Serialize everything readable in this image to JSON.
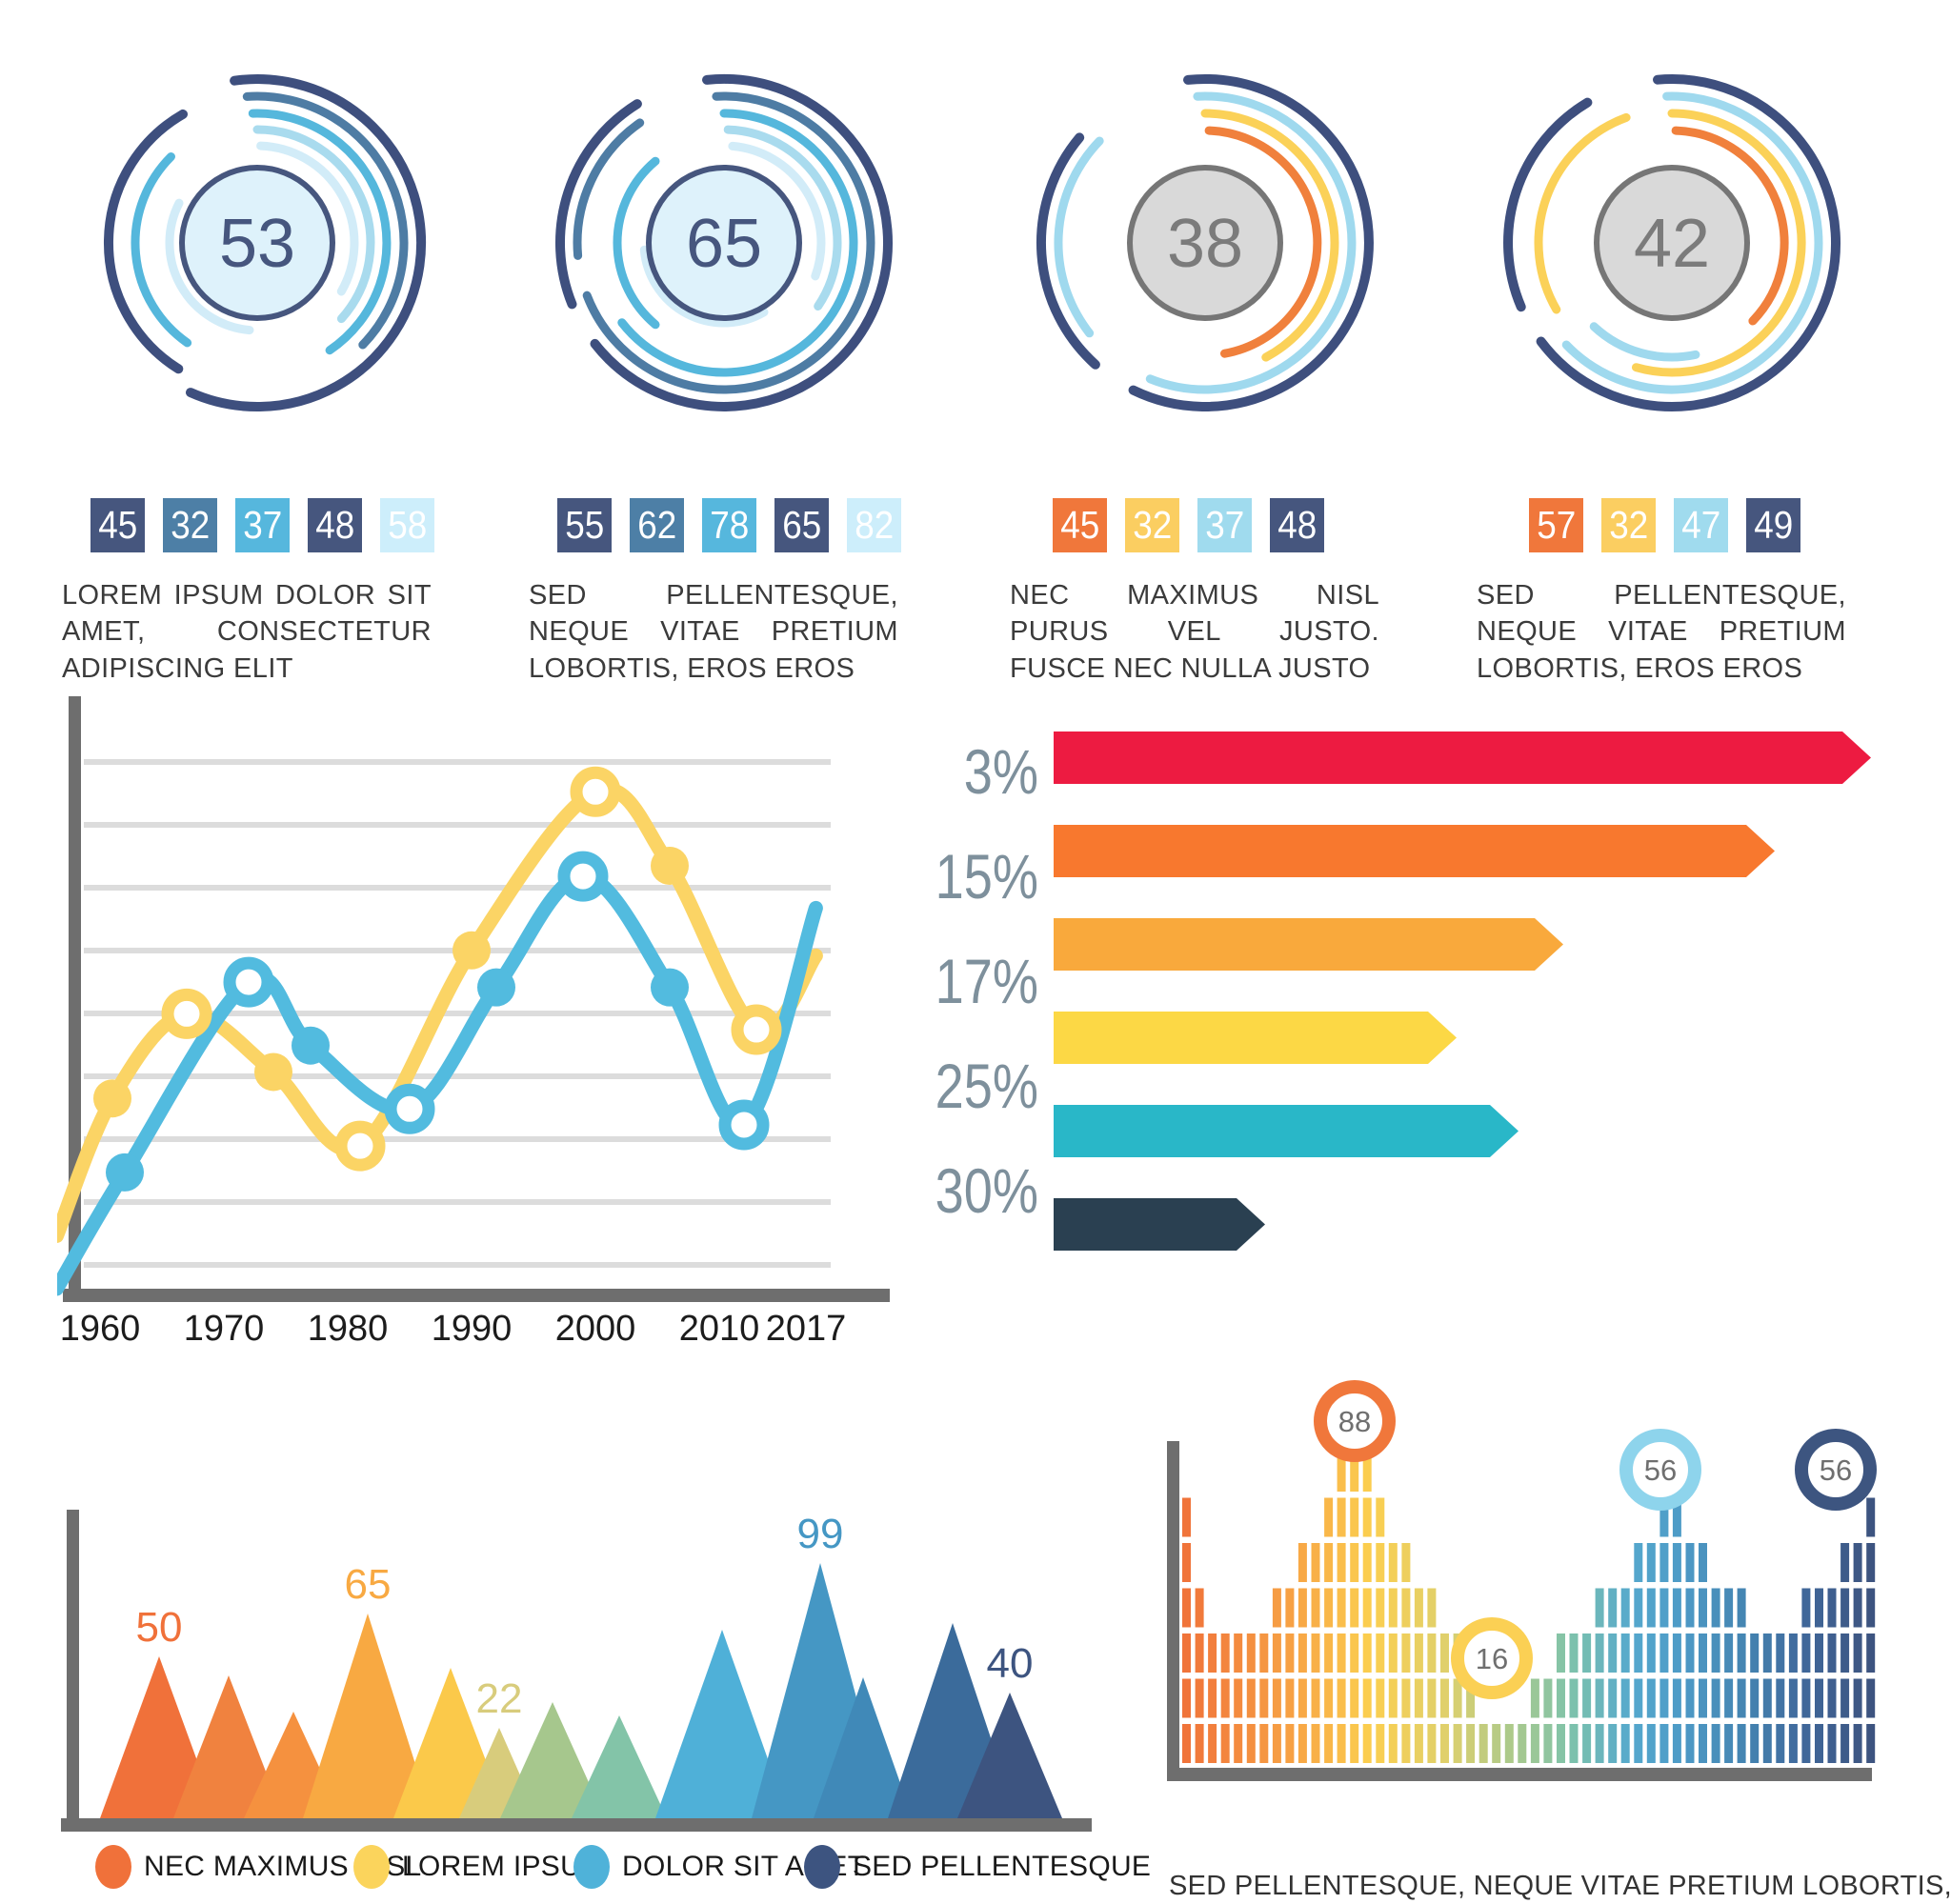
{
  "chart_data": [
    {
      "id": "gauge-1",
      "type": "gauge",
      "value": "53",
      "center_style": "blue",
      "center_fill": "#def2fb",
      "center_stroke": "#46567e",
      "value_color": "#46567e",
      "sub_values": [
        "45",
        "32",
        "37",
        "48",
        "58"
      ],
      "sub_colors": [
        "#46567e",
        "#4d7fa6",
        "#56b7dd",
        "#46567e",
        "#cdeefb"
      ],
      "caption": "LOREM IPSUM DOLOR SIT AMET, CONSECTETUR ADIPISCING ELIT",
      "arcs": [
        [
          172,
          "#3e4f7e",
          10,
          -8,
          212
        ],
        [
          156,
          "#3e4f7e",
          10,
          212,
          118
        ],
        [
          154,
          "#4e7ca4",
          9,
          -4,
          138
        ],
        [
          136,
          "#55b7dc",
          9,
          -2,
          148
        ],
        [
          128,
          "#55b7dc",
          9,
          215,
          100
        ],
        [
          119,
          "#a9dbee",
          9,
          0,
          132
        ],
        [
          102,
          "#d2ecf8",
          9,
          2,
          118
        ],
        [
          92,
          "#d2ecf8",
          9,
          185,
          112
        ]
      ]
    },
    {
      "id": "gauge-2",
      "type": "gauge",
      "value": "65",
      "center_style": "blue",
      "center_fill": "#def2fb",
      "center_stroke": "#46567e",
      "value_color": "#46567e",
      "sub_values": [
        "55",
        "62",
        "78",
        "65",
        "82"
      ],
      "sub_colors": [
        "#46567e",
        "#4d7fa6",
        "#56b7dd",
        "#46567e",
        "#cdeefb"
      ],
      "caption": "SED PELLENTESQUE, NEQUE VITAE PRETIUM LOBORTIS, EROS EROS",
      "arcs": [
        [
          172,
          "#3e4f7e",
          10,
          -6,
          238
        ],
        [
          172,
          "#3e4f7e",
          10,
          248,
          80
        ],
        [
          154,
          "#4e7ca4",
          9,
          -3,
          252
        ],
        [
          154,
          "#4e7ca4",
          9,
          265,
          60
        ],
        [
          136,
          "#55b7dc",
          9,
          0,
          232
        ],
        [
          119,
          "#a9dbee",
          9,
          2,
          122
        ],
        [
          112,
          "#55b7dc",
          9,
          220,
          100
        ],
        [
          102,
          "#d2ecf8",
          9,
          5,
          105
        ],
        [
          84,
          "#d2ecf8",
          9,
          150,
          115
        ]
      ]
    },
    {
      "id": "gauge-3",
      "type": "gauge",
      "value": "38",
      "center_style": "gray",
      "center_fill": "#d9d9d9",
      "center_stroke": "#767676",
      "value_color": "#7b7b7b",
      "sub_values": [
        "45",
        "32",
        "37",
        "48"
      ],
      "sub_colors": [
        "#f0773b",
        "#fbce61",
        "#a0dbee",
        "#46567e"
      ],
      "caption": "NEC MAXIMUS NISL PURUS VEL JUSTO. FUSCE NEC NULLA JUSTO",
      "arcs": [
        [
          172,
          "#3e4f7e",
          10,
          -6,
          212
        ],
        [
          172,
          "#3e4f7e",
          10,
          222,
          88
        ],
        [
          154,
          "#9fd9ee",
          9,
          -3,
          205
        ],
        [
          154,
          "#9fd9ee",
          9,
          232,
          82
        ],
        [
          136,
          "#fbd158",
          9,
          0,
          152
        ],
        [
          118,
          "#f0803c",
          9,
          2,
          168
        ]
      ]
    },
    {
      "id": "gauge-4",
      "type": "gauge",
      "value": "42",
      "center_style": "gray",
      "center_fill": "#d9d9d9",
      "center_stroke": "#767676",
      "value_color": "#7b7b7b",
      "sub_values": [
        "57",
        "32",
        "47",
        "49"
      ],
      "sub_colors": [
        "#f0773b",
        "#fbce61",
        "#a0dbee",
        "#46567e"
      ],
      "caption": "SED PELLENTESQUE, NEQUE VITAE PRETIUM LOBORTIS, EROS EROS",
      "arcs": [
        [
          172,
          "#3e4f7e",
          10,
          -5,
          238
        ],
        [
          172,
          "#3e4f7e",
          10,
          247,
          82
        ],
        [
          154,
          "#9fd9ee",
          9,
          -2,
          228
        ],
        [
          136,
          "#fbd158",
          9,
          0,
          196
        ],
        [
          140,
          "#fbd158",
          9,
          240,
          100
        ],
        [
          118,
          "#f0803c",
          9,
          2,
          132
        ],
        [
          120,
          "#9fd9ee",
          9,
          168,
          55
        ]
      ]
    },
    {
      "id": "line-years",
      "type": "line",
      "grid": true,
      "grid_lines": 9,
      "ylim": [
        0,
        100
      ],
      "axis_color": "#6e6e6e",
      "grid_color": "#dcdcdc",
      "tick_color": "#1c1c1c",
      "x_ticks": [
        "1960",
        "1970",
        "1980",
        "1990",
        "2000",
        "2010",
        "2017"
      ],
      "series": [
        {
          "name": "series-yellow",
          "color": "#fbd465",
          "points": [
            [
              1956.5,
              10
            ],
            [
              1961,
              36
            ],
            [
              1967,
              52
            ],
            [
              1974,
              41
            ],
            [
              1981,
              27
            ],
            [
              1990,
              64
            ],
            [
              2000,
              94
            ],
            [
              2006,
              80
            ],
            [
              2013,
              49
            ],
            [
              2017.8,
              63
            ]
          ],
          "markers": [
            [
              1961,
              36,
              "dot"
            ],
            [
              1967,
              52,
              "ring"
            ],
            [
              1974,
              41,
              "dot"
            ],
            [
              1981,
              27,
              "ring"
            ],
            [
              1990,
              64,
              "dot"
            ],
            [
              2000,
              94,
              "ring"
            ],
            [
              2006,
              80,
              "dot"
            ],
            [
              2013,
              49,
              "ring"
            ]
          ]
        },
        {
          "name": "series-blue",
          "color": "#52bbdf",
          "points": [
            [
              1956.5,
              0
            ],
            [
              1962,
              22
            ],
            [
              1972,
              58
            ],
            [
              1977,
              46
            ],
            [
              1985,
              34
            ],
            [
              1992,
              57
            ],
            [
              1999,
              78
            ],
            [
              2006,
              57
            ],
            [
              2012,
              31
            ],
            [
              2017.8,
              72
            ]
          ],
          "markers": [
            [
              1962,
              22,
              "dot"
            ],
            [
              1972,
              58,
              "ring"
            ],
            [
              1977,
              46,
              "dot"
            ],
            [
              1985,
              34,
              "ring"
            ],
            [
              1992,
              57,
              "dot"
            ],
            [
              1999,
              78,
              "ring"
            ],
            [
              2006,
              57,
              "dot"
            ],
            [
              2012,
              31,
              "ring"
            ]
          ]
        }
      ]
    },
    {
      "id": "percent-bars",
      "type": "bar",
      "label_color": "#7e909c",
      "bars": [
        {
          "label": "3%",
          "color": "#ed1b41",
          "length": 858
        },
        {
          "label": "15%",
          "color": "#f8782e",
          "length": 757
        },
        {
          "label": "17%",
          "color": "#f9a93c",
          "length": 535
        },
        {
          "label": "25%",
          "color": "#fcd845",
          "length": 423
        },
        {
          "label": "30%",
          "color": "#29b7c8",
          "length": 488
        },
        {
          "label": "",
          "color": "#2a4051",
          "length": 222
        }
      ]
    },
    {
      "id": "peak-chart",
      "type": "area",
      "axis_color": "#6e6e6e",
      "peaks": [
        [
          107,
          170,
          62,
          "#f0713a",
          "50"
        ],
        [
          180,
          150,
          58,
          "#f0823f",
          ""
        ],
        [
          248,
          112,
          52,
          "#f5913f",
          ""
        ],
        [
          326,
          215,
          68,
          "#f8a942",
          "65"
        ],
        [
          413,
          158,
          60,
          "#fbc94a",
          ""
        ],
        [
          464,
          95,
          42,
          "#d8cc7c",
          "22"
        ],
        [
          520,
          122,
          55,
          "#a6c78d",
          ""
        ],
        [
          590,
          108,
          50,
          "#83c4a8",
          ""
        ],
        [
          698,
          198,
          70,
          "#4fb0d8",
          ""
        ],
        [
          801,
          268,
          72,
          "#4597c4",
          "99"
        ],
        [
          846,
          148,
          52,
          "#4089b8",
          ""
        ],
        [
          940,
          205,
          68,
          "#3b6b9b",
          ""
        ],
        [
          1000,
          132,
          55,
          "#3d5480",
          "40"
        ]
      ],
      "legend": [
        {
          "label": "NEC MAXIMUS NISL",
          "color": "#f0713a"
        },
        {
          "label": "LOREM IPSUM",
          "color": "#fbd45c"
        },
        {
          "label": "DOLOR SIT AMET",
          "color": "#4fb2d9"
        },
        {
          "label": "SED PELLENTESQUE",
          "color": "#3d5480"
        }
      ]
    },
    {
      "id": "equalizer",
      "type": "bar",
      "axis_color": "#6e6e6e",
      "row_max": 7,
      "column_heights": [
        6,
        4,
        3,
        3,
        3,
        3,
        3,
        4,
        4,
        5,
        5,
        6,
        7,
        7,
        7,
        6,
        5,
        5,
        4,
        4,
        3,
        3,
        2,
        1,
        1,
        1,
        1,
        2,
        2,
        3,
        3,
        3,
        4,
        4,
        4,
        5,
        5,
        6,
        6,
        5,
        5,
        4,
        4,
        4,
        3,
        3,
        3,
        3,
        4,
        4,
        4,
        5,
        5,
        6
      ],
      "badges": [
        {
          "value": "88",
          "color": "#f0773b",
          "x": 197,
          "y": 57
        },
        {
          "value": "16",
          "color": "#fbd054",
          "x": 341,
          "y": 306
        },
        {
          "value": "56",
          "color": "#8ed4ec",
          "x": 518,
          "y": 108
        },
        {
          "value": "56",
          "color": "#3d5580",
          "x": 702,
          "y": 108
        }
      ],
      "gradient": [
        [
          0,
          "#f0743a"
        ],
        [
          0.15,
          "#f7a144"
        ],
        [
          0.27,
          "#fbcf4f"
        ],
        [
          0.38,
          "#dfd06d"
        ],
        [
          0.48,
          "#a9c98d"
        ],
        [
          0.56,
          "#7fc3ab"
        ],
        [
          0.65,
          "#55a8cd"
        ],
        [
          0.72,
          "#4e9bc7"
        ],
        [
          0.82,
          "#4484b1"
        ],
        [
          0.9,
          "#40689b"
        ],
        [
          1,
          "#3d5480"
        ]
      ],
      "caption": "SED PELLENTESQUE, NEQUE VITAE PRETIUM LOBORTIS, EROS EROSOLLICITUD"
    }
  ]
}
